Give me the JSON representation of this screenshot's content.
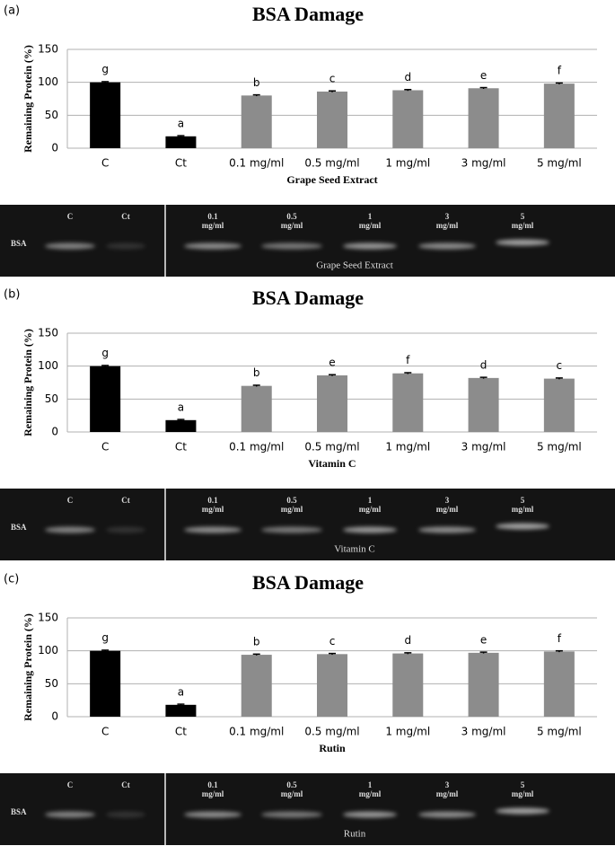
{
  "chart_data": [
    {
      "type": "bar",
      "panel": "(a)",
      "title": "BSA Damage",
      "y_label": "Remaining Protein (%)",
      "x_label": "Grape Seed Extract",
      "categories": [
        "C",
        "Ct",
        "0.1 mg/ml",
        "0.5 mg/ml",
        "1 mg/ml",
        "3 mg/ml",
        "5 mg/ml"
      ],
      "values": [
        100,
        18,
        80,
        86,
        88,
        91,
        98
      ],
      "errors": [
        1,
        1,
        1,
        1,
        1,
        1,
        1
      ],
      "annotations": [
        "g",
        "a",
        "b",
        "c",
        "d",
        "e",
        "f"
      ],
      "colors": [
        "#000000",
        "#000000",
        "#8c8c8c",
        "#8c8c8c",
        "#8c8c8c",
        "#8c8c8c",
        "#8c8c8c"
      ],
      "ylim": [
        0,
        150
      ],
      "yticks": [
        0,
        50,
        100,
        150
      ],
      "grid": true
    },
    {
      "type": "bar",
      "panel": "(b)",
      "title": "BSA Damage",
      "y_label": "Remaining Protein (%)",
      "x_label": "Vitamin C",
      "categories": [
        "C",
        "Ct",
        "0.1 mg/ml",
        "0.5 mg/ml",
        "1 mg/ml",
        "3 mg/ml",
        "5 mg/ml"
      ],
      "values": [
        100,
        18,
        70,
        86,
        89,
        82,
        81
      ],
      "errors": [
        1,
        1,
        1,
        1,
        1,
        1,
        1
      ],
      "annotations": [
        "g",
        "a",
        "b",
        "e",
        "f",
        "d",
        "c"
      ],
      "colors": [
        "#000000",
        "#000000",
        "#8c8c8c",
        "#8c8c8c",
        "#8c8c8c",
        "#8c8c8c",
        "#8c8c8c"
      ],
      "ylim": [
        0,
        150
      ],
      "yticks": [
        0,
        50,
        100,
        150
      ],
      "grid": true
    },
    {
      "type": "bar",
      "panel": "(c)",
      "title": "BSA Damage",
      "y_label": "Remaining Protein (%)",
      "x_label": "Rutin",
      "categories": [
        "C",
        "Ct",
        "0.1 mg/ml",
        "0.5 mg/ml",
        "1 mg/ml",
        "3 mg/ml",
        "5 mg/ml"
      ],
      "values": [
        100,
        18,
        94,
        95,
        96,
        97,
        99
      ],
      "errors": [
        1,
        1,
        1,
        1,
        1,
        1,
        1
      ],
      "annotations": [
        "g",
        "a",
        "b",
        "c",
        "d",
        "e",
        "f"
      ],
      "colors": [
        "#000000",
        "#000000",
        "#8c8c8c",
        "#8c8c8c",
        "#8c8c8c",
        "#8c8c8c",
        "#8c8c8c"
      ],
      "ylim": [
        0,
        150
      ],
      "yticks": [
        0,
        50,
        100,
        150
      ],
      "grid": true
    }
  ],
  "gels": [
    {
      "lanes": [
        [
          "C"
        ],
        [
          "Ct"
        ],
        [
          "0.1",
          "mg/ml"
        ],
        [
          "0.5",
          "mg/ml"
        ],
        [
          "1",
          "mg/ml"
        ],
        [
          "3",
          "mg/ml"
        ],
        [
          "5",
          "mg/ml"
        ]
      ],
      "marker": "BSA",
      "caption": "Grape Seed Extract"
    },
    {
      "lanes": [
        [
          "C"
        ],
        [
          "Ct"
        ],
        [
          "0.1",
          "mg/ml"
        ],
        [
          "0.5",
          "mg/ml"
        ],
        [
          "1",
          "mg/ml"
        ],
        [
          "3",
          "mg/ml"
        ],
        [
          "5",
          "mg/ml"
        ]
      ],
      "marker": "BSA",
      "caption": "Vitamin C"
    },
    {
      "lanes": [
        [
          "C"
        ],
        [
          "Ct"
        ],
        [
          "0.1",
          "mg/ml"
        ],
        [
          "0.5",
          "mg/ml"
        ],
        [
          "1",
          "mg/ml"
        ],
        [
          "3",
          "mg/ml"
        ],
        [
          "5",
          "mg/ml"
        ]
      ],
      "marker": "BSA",
      "caption": "Rutin"
    }
  ]
}
